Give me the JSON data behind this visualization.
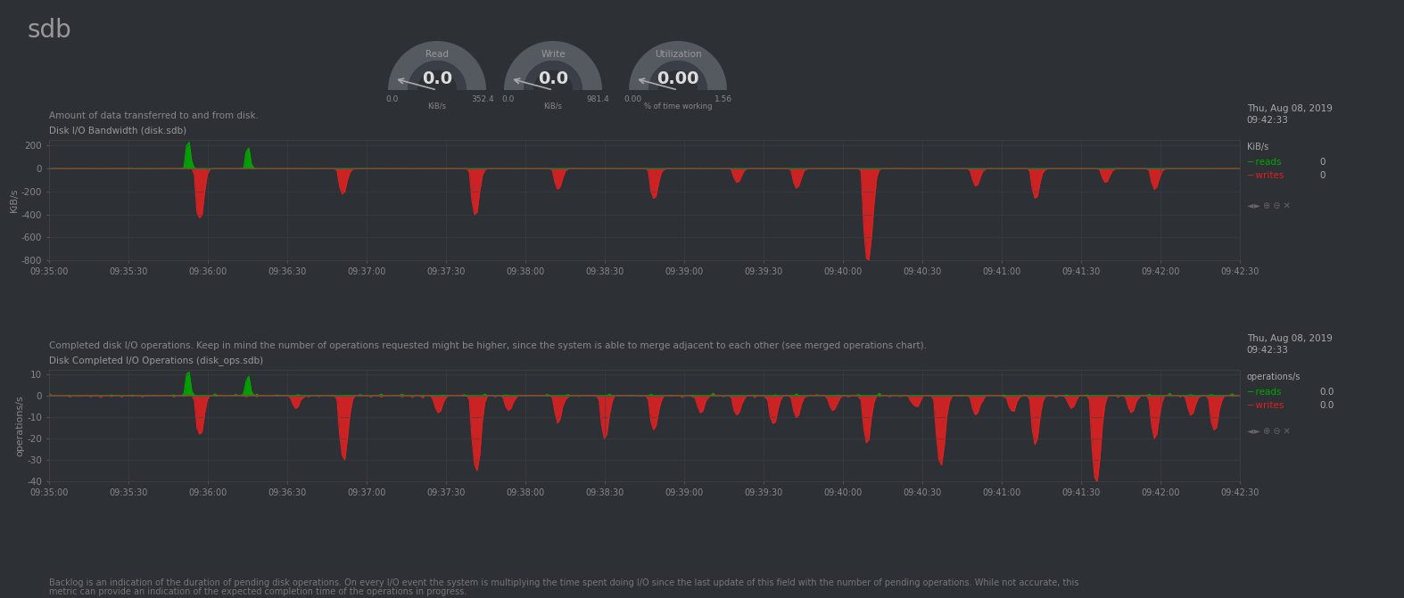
{
  "bg_color": "#2d3035",
  "text_color": "#aaaaaa",
  "title": "sdb",
  "title_fontsize": 20,
  "gauges": [
    {
      "label": "Read",
      "value": "0.0",
      "min": "0.0",
      "max": "352.4",
      "unit": "KiB/s"
    },
    {
      "label": "Write",
      "value": "0.0",
      "min": "0.0",
      "max": "981.4",
      "unit": "KiB/s"
    },
    {
      "label": "Utilization",
      "value": "0.00",
      "min": "0.00",
      "max": "1.56",
      "unit": "% of time working"
    }
  ],
  "chart1_title": "Disk I/O Bandwidth (disk.sdb)",
  "chart1_desc": "Amount of data transferred to and from disk.",
  "chart1_ylabel": "KiB/s",
  "chart1_ylim": [
    -800,
    250
  ],
  "chart1_yticks": [
    200,
    0,
    -200,
    -400,
    -600,
    -800
  ],
  "chart1_datetime": "Thu, Aug 08, 2019\n09:42:33",
  "chart1_unit": "KiB/s",
  "chart1_reads_val": "0",
  "chart1_writes_val": "0",
  "chart2_title": "Disk Completed I/O Operations (disk_ops.sdb)",
  "chart2_desc": "Completed disk I/O operations. Keep in mind the number of operations requested might be higher, since the system is able to merge adjacent to each other (see merged operations chart).",
  "chart2_ylabel": "operations/s",
  "chart2_ylim": [
    -40,
    12
  ],
  "chart2_yticks": [
    10,
    0,
    -10,
    -20,
    -30,
    -40
  ],
  "chart2_datetime": "Thu, Aug 08, 2019\n09:42:33",
  "chart2_unit": "operations/s",
  "chart2_reads_val": "0.0",
  "chart2_writes_val": "0.0",
  "footer_line1": "Backlog is an indication of the duration of pending disk operations. On every I/O event the system is multiplying the time spent doing I/O since the last update of this field with the number of pending operations. While not accurate, this",
  "footer_line2": "metric can provide an indication of the expected completion time of the operations in progress.",
  "reads_color": "#00aa00",
  "writes_color": "#dd2222",
  "xticks": [
    "09:35:00",
    "09:35:30",
    "09:36:00",
    "09:36:30",
    "09:37:00",
    "09:37:30",
    "09:38:00",
    "09:38:30",
    "09:39:00",
    "09:39:30",
    "09:40:00",
    "09:40:30",
    "09:41:00",
    "09:41:30",
    "09:42:00",
    "09:42:30"
  ],
  "chart_bg": "#2d3035",
  "grid_color": "#3d4147",
  "nav_symbols": "◄► ⊕ ⊖ ✕"
}
